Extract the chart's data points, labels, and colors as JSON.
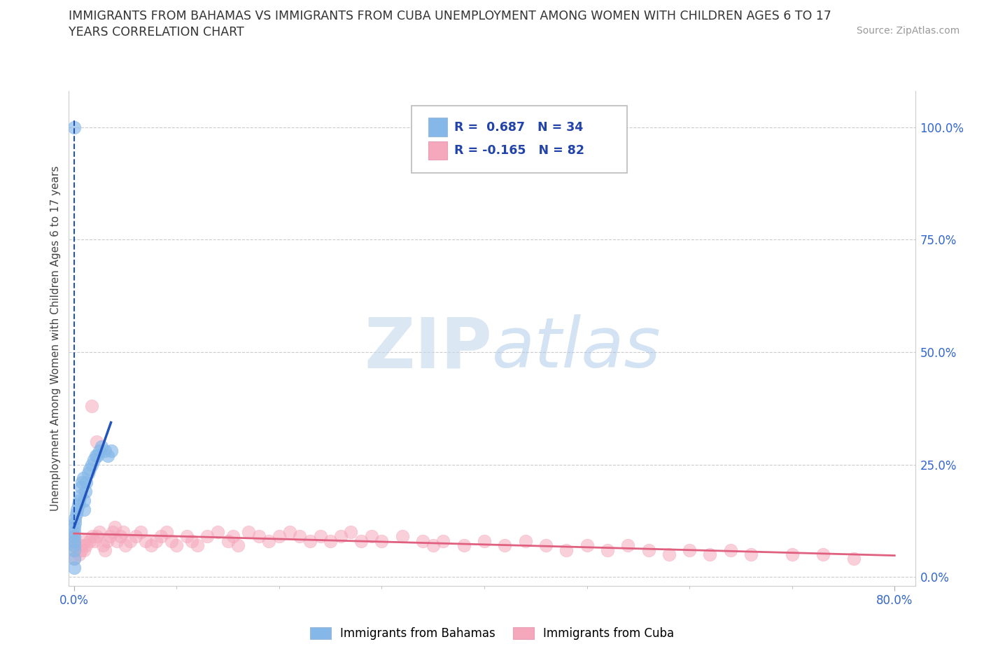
{
  "title_line1": "IMMIGRANTS FROM BAHAMAS VS IMMIGRANTS FROM CUBA UNEMPLOYMENT AMONG WOMEN WITH CHILDREN AGES 6 TO 17",
  "title_line2": "YEARS CORRELATION CHART",
  "source": "Source: ZipAtlas.com",
  "ylabel": "Unemployment Among Women with Children Ages 6 to 17 years",
  "xlim": [
    -0.005,
    0.82
  ],
  "ylim": [
    -0.02,
    1.08
  ],
  "ytick_positions": [
    0.0,
    0.25,
    0.5,
    0.75,
    1.0
  ],
  "yticklabels_right": [
    "0.0%",
    "25.0%",
    "50.0%",
    "75.0%",
    "100.0%"
  ],
  "background_color": "#ffffff",
  "grid_color": "#cccccc",
  "watermark_text": "ZIPatlas",
  "bahamas_color": "#85b8e8",
  "cuba_color": "#f5a8bc",
  "bahamas_line_color": "#2255bb",
  "cuba_line_color": "#e06080",
  "R_bahamas": 0.687,
  "N_bahamas": 34,
  "R_cuba": -0.165,
  "N_cuba": 82,
  "legend_label_bahamas": "Immigrants from Bahamas",
  "legend_label_cuba": "Immigrants from Cuba",
  "bahamas_scatter_x": [
    0.0,
    0.0,
    0.0,
    0.0,
    0.0,
    0.0,
    0.0,
    0.0,
    0.001,
    0.001,
    0.002,
    0.003,
    0.004,
    0.005,
    0.006,
    0.007,
    0.008,
    0.009,
    0.01,
    0.01,
    0.011,
    0.012,
    0.014,
    0.015,
    0.017,
    0.019,
    0.021,
    0.023,
    0.025,
    0.027,
    0.03,
    0.033,
    0.036,
    0.0
  ],
  "bahamas_scatter_y": [
    0.02,
    0.04,
    0.06,
    0.07,
    0.08,
    0.09,
    0.1,
    0.11,
    0.12,
    0.13,
    0.14,
    0.15,
    0.16,
    0.17,
    0.18,
    0.2,
    0.21,
    0.22,
    0.15,
    0.17,
    0.19,
    0.21,
    0.23,
    0.24,
    0.25,
    0.26,
    0.27,
    0.27,
    0.28,
    0.29,
    0.28,
    0.27,
    0.28,
    1.0
  ],
  "cuba_scatter_x": [
    0.0,
    0.0,
    0.0,
    0.0,
    0.0,
    0.005,
    0.007,
    0.008,
    0.01,
    0.01,
    0.012,
    0.015,
    0.018,
    0.02,
    0.022,
    0.025,
    0.028,
    0.03,
    0.032,
    0.035,
    0.038,
    0.04,
    0.042,
    0.045,
    0.048,
    0.05,
    0.055,
    0.06,
    0.065,
    0.07,
    0.075,
    0.08,
    0.085,
    0.09,
    0.095,
    0.1,
    0.11,
    0.115,
    0.12,
    0.13,
    0.14,
    0.15,
    0.155,
    0.16,
    0.17,
    0.18,
    0.19,
    0.2,
    0.21,
    0.22,
    0.23,
    0.24,
    0.25,
    0.26,
    0.27,
    0.28,
    0.29,
    0.3,
    0.32,
    0.34,
    0.35,
    0.36,
    0.38,
    0.4,
    0.42,
    0.44,
    0.46,
    0.48,
    0.5,
    0.52,
    0.54,
    0.56,
    0.58,
    0.6,
    0.62,
    0.64,
    0.66,
    0.7,
    0.73,
    0.76,
    0.017,
    0.022
  ],
  "cuba_scatter_y": [
    0.04,
    0.06,
    0.07,
    0.08,
    0.09,
    0.05,
    0.06,
    0.07,
    0.06,
    0.08,
    0.07,
    0.08,
    0.09,
    0.08,
    0.09,
    0.1,
    0.07,
    0.06,
    0.08,
    0.09,
    0.1,
    0.11,
    0.08,
    0.09,
    0.1,
    0.07,
    0.08,
    0.09,
    0.1,
    0.08,
    0.07,
    0.08,
    0.09,
    0.1,
    0.08,
    0.07,
    0.09,
    0.08,
    0.07,
    0.09,
    0.1,
    0.08,
    0.09,
    0.07,
    0.1,
    0.09,
    0.08,
    0.09,
    0.1,
    0.09,
    0.08,
    0.09,
    0.08,
    0.09,
    0.1,
    0.08,
    0.09,
    0.08,
    0.09,
    0.08,
    0.07,
    0.08,
    0.07,
    0.08,
    0.07,
    0.08,
    0.07,
    0.06,
    0.07,
    0.06,
    0.07,
    0.06,
    0.05,
    0.06,
    0.05,
    0.06,
    0.05,
    0.05,
    0.05,
    0.04,
    0.38,
    0.3
  ]
}
